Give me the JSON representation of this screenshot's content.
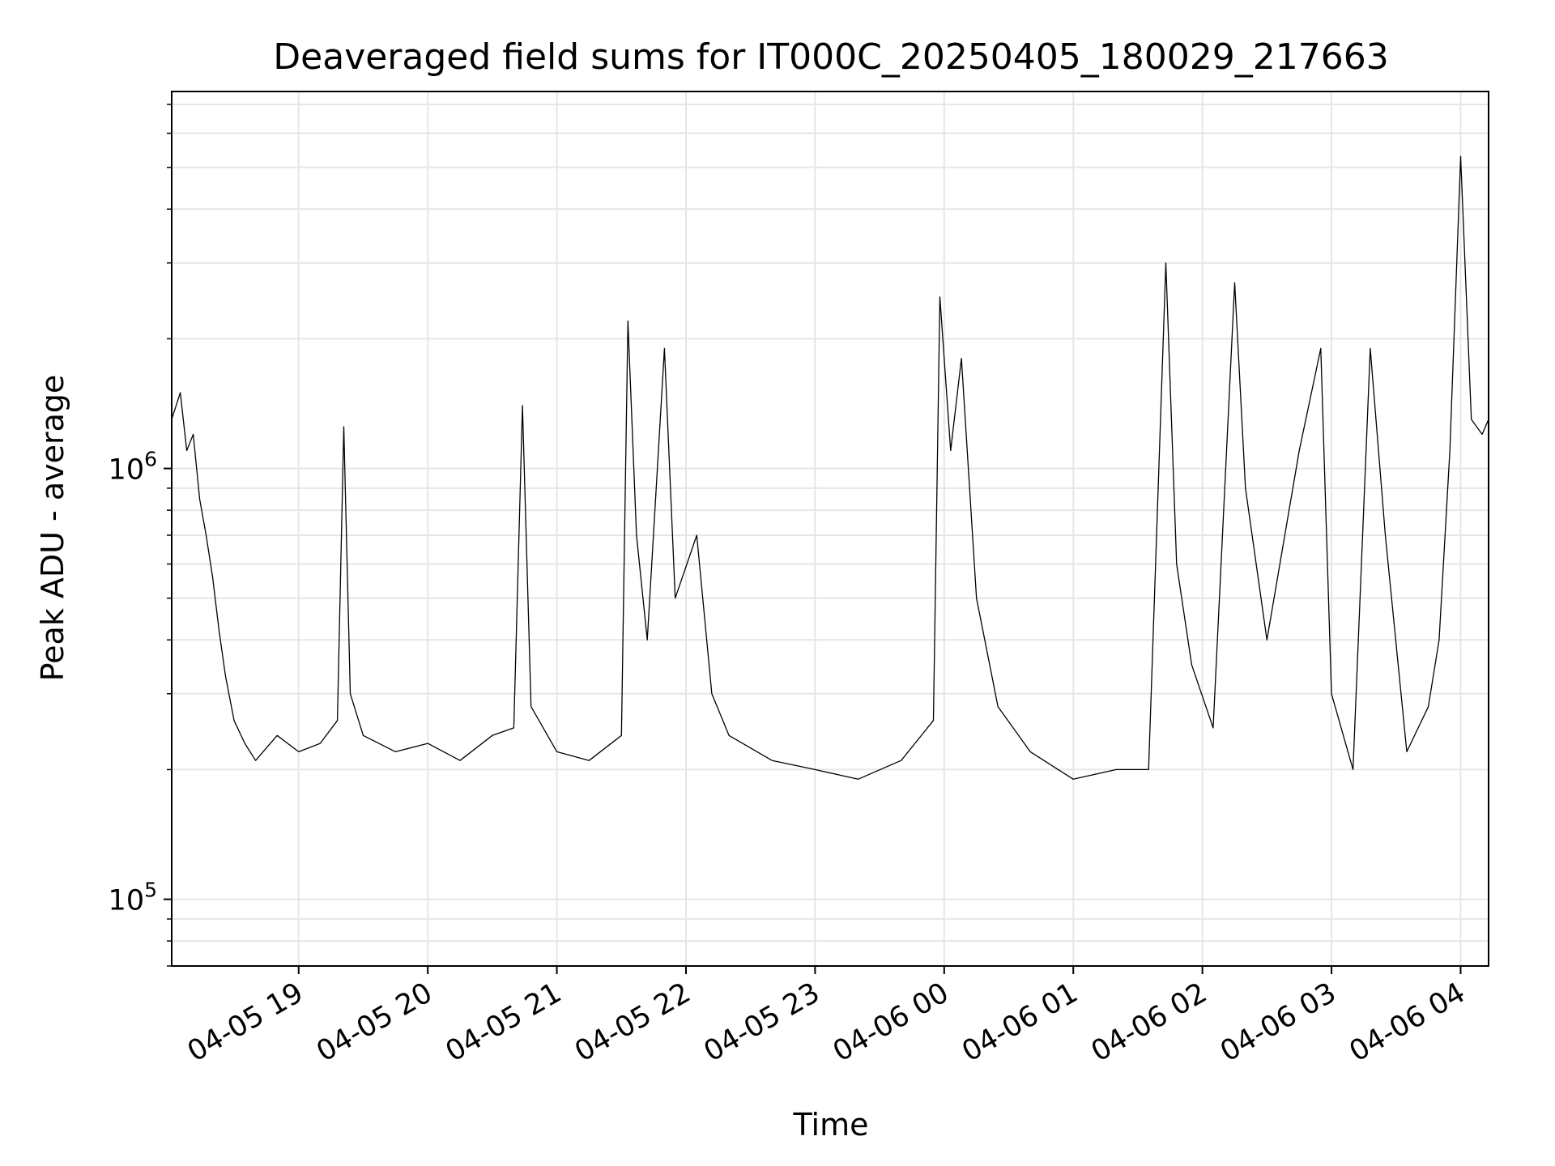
{
  "chart_data": {
    "type": "line",
    "title": "Deaveraged field sums for IT000C_20250405_180029_217663",
    "xlabel": "Time",
    "ylabel": "Peak ADU - average",
    "yscale": "log",
    "ylim": [
      70000,
      7500000
    ],
    "xlim": [
      "2025-04-05 18:01",
      "2025-04-06 04:13"
    ],
    "grid": true,
    "line_color": "#000000",
    "grid_color": "#e6e6e6",
    "x_tick_labels": [
      "04-05 19",
      "04-05 20",
      "04-05 21",
      "04-05 22",
      "04-05 23",
      "04-06 00",
      "04-06 01",
      "04-06 02",
      "04-06 03",
      "04-06 04"
    ],
    "x_tick_times": [
      "2025-04-05 19:00",
      "2025-04-05 20:00",
      "2025-04-05 21:00",
      "2025-04-05 22:00",
      "2025-04-05 23:00",
      "2025-04-06 00:00",
      "2025-04-06 01:00",
      "2025-04-06 02:00",
      "2025-04-06 03:00",
      "2025-04-06 04:00"
    ],
    "y_tick_labels": [
      {
        "value": 100000,
        "base": "10",
        "exp": "5"
      },
      {
        "value": 1000000,
        "base": "10",
        "exp": "6"
      }
    ],
    "y_minor_ticks": [
      70000,
      80000,
      90000,
      200000,
      300000,
      400000,
      500000,
      600000,
      700000,
      800000,
      900000,
      2000000,
      3000000,
      4000000,
      5000000,
      6000000,
      7000000
    ],
    "series": [
      {
        "points": [
          [
            "2025-04-05 18:01",
            1300000
          ],
          [
            "2025-04-05 18:05",
            1500000
          ],
          [
            "2025-04-05 18:08",
            1100000
          ],
          [
            "2025-04-05 18:11",
            1200000
          ],
          [
            "2025-04-05 18:14",
            850000
          ],
          [
            "2025-04-05 18:17",
            700000
          ],
          [
            "2025-04-05 18:20",
            560000
          ],
          [
            "2025-04-05 18:23",
            420000
          ],
          [
            "2025-04-05 18:26",
            330000
          ],
          [
            "2025-04-05 18:30",
            260000
          ],
          [
            "2025-04-05 18:35",
            230000
          ],
          [
            "2025-04-05 18:40",
            210000
          ],
          [
            "2025-04-05 18:50",
            240000
          ],
          [
            "2025-04-05 19:00",
            220000
          ],
          [
            "2025-04-05 19:10",
            230000
          ],
          [
            "2025-04-05 19:18",
            260000
          ],
          [
            "2025-04-05 19:21",
            1250000
          ],
          [
            "2025-04-05 19:24",
            300000
          ],
          [
            "2025-04-05 19:30",
            240000
          ],
          [
            "2025-04-05 19:45",
            220000
          ],
          [
            "2025-04-05 20:00",
            230000
          ],
          [
            "2025-04-05 20:15",
            210000
          ],
          [
            "2025-04-05 20:30",
            240000
          ],
          [
            "2025-04-05 20:40",
            250000
          ],
          [
            "2025-04-05 20:44",
            1400000
          ],
          [
            "2025-04-05 20:48",
            280000
          ],
          [
            "2025-04-05 21:00",
            220000
          ],
          [
            "2025-04-05 21:15",
            210000
          ],
          [
            "2025-04-05 21:30",
            240000
          ],
          [
            "2025-04-05 21:33",
            2200000
          ],
          [
            "2025-04-05 21:37",
            700000
          ],
          [
            "2025-04-05 21:42",
            400000
          ],
          [
            "2025-04-05 21:50",
            1900000
          ],
          [
            "2025-04-05 21:55",
            500000
          ],
          [
            "2025-04-05 22:05",
            700000
          ],
          [
            "2025-04-05 22:12",
            300000
          ],
          [
            "2025-04-05 22:20",
            240000
          ],
          [
            "2025-04-05 22:40",
            210000
          ],
          [
            "2025-04-05 23:00",
            200000
          ],
          [
            "2025-04-05 23:20",
            190000
          ],
          [
            "2025-04-05 23:40",
            210000
          ],
          [
            "2025-04-05 23:55",
            260000
          ],
          [
            "2025-04-05 23:58",
            2500000
          ],
          [
            "2025-04-06 00:03",
            1100000
          ],
          [
            "2025-04-06 00:08",
            1800000
          ],
          [
            "2025-04-06 00:15",
            500000
          ],
          [
            "2025-04-06 00:25",
            280000
          ],
          [
            "2025-04-06 00:40",
            220000
          ],
          [
            "2025-04-06 01:00",
            190000
          ],
          [
            "2025-04-06 01:20",
            200000
          ],
          [
            "2025-04-06 01:35",
            200000
          ],
          [
            "2025-04-06 01:43",
            3000000
          ],
          [
            "2025-04-06 01:48",
            600000
          ],
          [
            "2025-04-06 01:55",
            350000
          ],
          [
            "2025-04-06 02:05",
            250000
          ],
          [
            "2025-04-06 02:15",
            2700000
          ],
          [
            "2025-04-06 02:20",
            900000
          ],
          [
            "2025-04-06 02:30",
            400000
          ],
          [
            "2025-04-06 02:45",
            1100000
          ],
          [
            "2025-04-06 02:55",
            1900000
          ],
          [
            "2025-04-06 03:00",
            300000
          ],
          [
            "2025-04-06 03:10",
            200000
          ],
          [
            "2025-04-06 03:18",
            1900000
          ],
          [
            "2025-04-06 03:25",
            700000
          ],
          [
            "2025-04-06 03:35",
            220000
          ],
          [
            "2025-04-06 03:45",
            280000
          ],
          [
            "2025-04-06 03:50",
            400000
          ],
          [
            "2025-04-06 03:55",
            1100000
          ],
          [
            "2025-04-06 04:00",
            5300000
          ],
          [
            "2025-04-06 04:05",
            1300000
          ],
          [
            "2025-04-06 04:10",
            1200000
          ],
          [
            "2025-04-06 04:13",
            1300000
          ]
        ]
      }
    ]
  }
}
